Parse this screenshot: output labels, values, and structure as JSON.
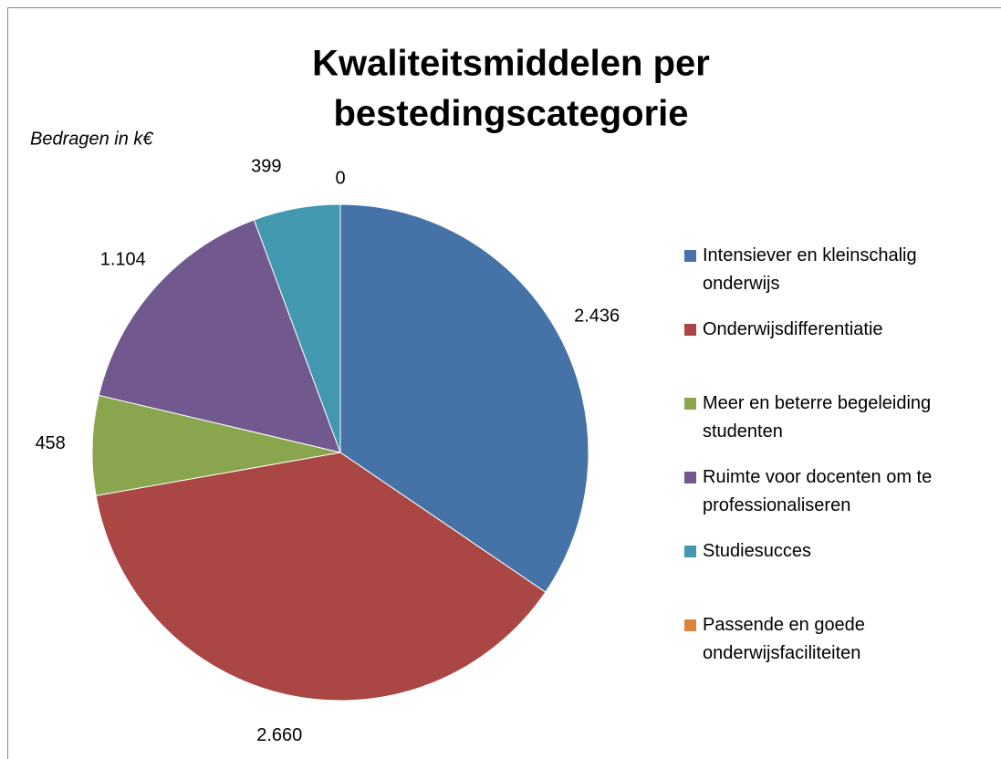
{
  "chart_data": {
    "type": "pie",
    "title": "Kwaliteitsmiddelen per bestedingscategorie",
    "subtitle": "Bedragen in k€",
    "categories": [
      "Intensiever en kleinschalig onderwijs",
      "Onderwijsdifferentiatie",
      "Meer en beterre begeleiding studenten",
      "Ruimte voor docenten om te professionaliseren",
      "Studiesucces",
      "Passende  en goede onderwijsfaciliteiten"
    ],
    "values": [
      2436,
      2660,
      458,
      1104,
      399,
      0
    ],
    "value_labels": [
      "2.436",
      "2.660",
      "458",
      "1.104",
      "399",
      "0"
    ],
    "colors": [
      "#4572A7",
      "#AA4643",
      "#89A54E",
      "#71588F",
      "#4198AF",
      "#DB843D"
    ],
    "legend": "right"
  }
}
